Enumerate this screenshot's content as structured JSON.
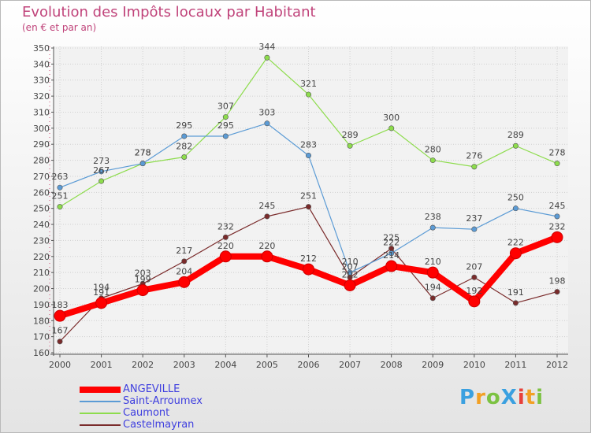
{
  "chart_data": {
    "type": "line",
    "title": "Evolution des Impôts locaux par Habitant",
    "subtitle": "(en € et par an)",
    "x": [
      "2000",
      "2001",
      "2002",
      "2003",
      "2004",
      "2005",
      "2006",
      "2007",
      "2008",
      "2009",
      "2010",
      "2011",
      "2012"
    ],
    "ylim": [
      160,
      350
    ],
    "yticks": [
      "160",
      "170",
      "180",
      "190",
      "200",
      "210",
      "220",
      "230",
      "240",
      "250",
      "260",
      "270",
      "280",
      "290",
      "300",
      "310",
      "320",
      "330",
      "340",
      "350"
    ],
    "grid": true,
    "legend_position": "bottom-left",
    "series": [
      {
        "name": "ANGEVILLE",
        "color": "#ff0000",
        "values": [
          183,
          191,
          199,
          204,
          220,
          220,
          212,
          202,
          214,
          210,
          192,
          222,
          232
        ]
      },
      {
        "name": "Saint-Arroumex",
        "color": "#5b9bd5",
        "values": [
          263,
          273,
          278,
          295,
          295,
          303,
          283,
          210,
          222,
          238,
          237,
          250,
          245
        ]
      },
      {
        "name": "Caumont",
        "color": "#8ddc4c",
        "values": [
          251,
          267,
          278,
          282,
          307,
          344,
          321,
          289,
          300,
          280,
          276,
          289,
          278
        ]
      },
      {
        "name": "Castelmayran",
        "color": "#7a2b2b",
        "values": [
          167,
          194,
          203,
          217,
          232,
          245,
          251,
          207,
          225,
          194,
          207,
          191,
          198
        ]
      }
    ]
  },
  "brand": {
    "text": "ProXiti"
  }
}
